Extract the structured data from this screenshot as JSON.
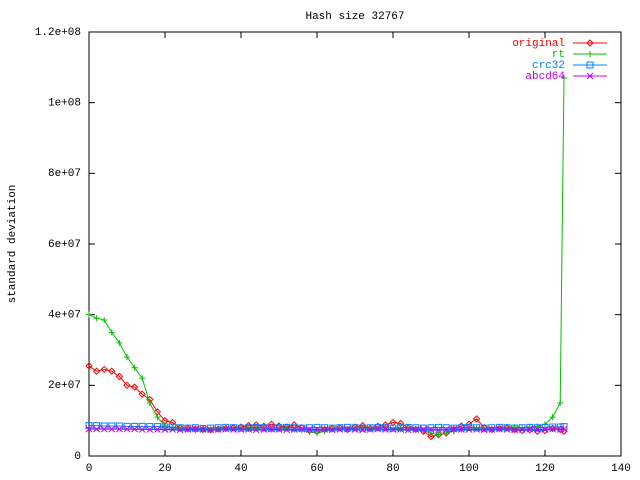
{
  "chart_data": {
    "type": "line",
    "title": "Hash size 32767",
    "y_label": "standard deviation",
    "x": [
      0,
      2,
      4,
      6,
      8,
      10,
      12,
      14,
      16,
      18,
      20,
      22,
      24,
      26,
      28,
      30,
      32,
      34,
      36,
      38,
      40,
      42,
      44,
      46,
      48,
      50,
      52,
      54,
      56,
      58,
      60,
      62,
      64,
      66,
      68,
      70,
      72,
      74,
      76,
      78,
      80,
      82,
      84,
      86,
      88,
      90,
      92,
      94,
      96,
      98,
      100,
      102,
      104,
      106,
      108,
      110,
      112,
      114,
      116,
      118,
      120,
      122,
      124,
      125
    ],
    "series": [
      {
        "name": "original",
        "color": "#ff0000",
        "marker": "diamond",
        "values": [
          25500000.0,
          24000000.0,
          24500000.0,
          24000000.0,
          22500000.0,
          20000000.0,
          19500000.0,
          17500000.0,
          16000000.0,
          12500000.0,
          10000000.0,
          9500000.0,
          8000000.0,
          7800000.0,
          7600000.0,
          7500000.0,
          7400000.0,
          7600000.0,
          7800000.0,
          8000000.0,
          8200000.0,
          8600000.0,
          8800000.0,
          8400000.0,
          9000000.0,
          8500000.0,
          8200000.0,
          8800000.0,
          8000000.0,
          7200000.0,
          7000000.0,
          7500000.0,
          7800000.0,
          8000000.0,
          7500000.0,
          8200000.0,
          8600000.0,
          7800000.0,
          8400000.0,
          8800000.0,
          9500000.0,
          9200000.0,
          8000000.0,
          7500000.0,
          7000000.0,
          5500000.0,
          6000000.0,
          6500000.0,
          7500000.0,
          8500000.0,
          9000000.0,
          10500000.0,
          8000000.0,
          7500000.0,
          7800000.0,
          8000000.0,
          7500000.0,
          7200000.0,
          7400000.0,
          7000000.0,
          7200000.0,
          7800000.0,
          7500000.0,
          7000000.0
        ]
      },
      {
        "name": "rt",
        "color": "#00c000",
        "marker": "plus",
        "values": [
          40000000.0,
          39000000.0,
          38500000.0,
          35000000.0,
          32000000.0,
          28000000.0,
          25000000.0,
          22000000.0,
          15000000.0,
          11000000.0,
          8500000.0,
          8000000.0,
          7600000.0,
          7500000.0,
          7400000.0,
          7300000.0,
          7500000.0,
          7600000.0,
          7800000.0,
          8000000.0,
          7800000.0,
          7600000.0,
          7800000.0,
          8000000.0,
          7500000.0,
          7600000.0,
          7800000.0,
          7400000.0,
          7200000.0,
          6800000.0,
          6500000.0,
          7000000.0,
          7500000.0,
          7800000.0,
          7600000.0,
          7800000.0,
          8000000.0,
          7600000.0,
          7800000.0,
          8000000.0,
          7800000.0,
          7600000.0,
          7500000.0,
          7400000.0,
          7200000.0,
          6500000.0,
          6000000.0,
          6500000.0,
          7000000.0,
          7500000.0,
          8000000.0,
          7800000.0,
          7500000.0,
          7600000.0,
          7800000.0,
          8000000.0,
          8200000.0,
          8000000.0,
          8200000.0,
          8400000.0,
          9000000.0,
          11000000.0,
          15000000.0,
          107000000.0
        ]
      },
      {
        "name": "crc32",
        "color": "#0080ff",
        "marker": "square",
        "values": [
          8600000.0,
          8600000.0,
          8500000.0,
          8500000.0,
          8500000.0,
          8400000.0,
          8400000.0,
          8400000.0,
          8300000.0,
          8300000.0,
          8200000.0,
          8200000.0,
          8000000.0,
          7900000.0,
          8000000.0,
          7800000.0,
          7900000.0,
          8000000.0,
          8100000.0,
          8000000.0,
          7900000.0,
          8000000.0,
          8100000.0,
          8000000.0,
          7900000.0,
          8000000.0,
          8100000.0,
          8000000.0,
          7900000.0,
          8000000.0,
          8100000.0,
          8000000.0,
          7900000.0,
          8000000.0,
          8100000.0,
          8000000.0,
          7900000.0,
          8000000.0,
          8100000.0,
          8000000.0,
          7900000.0,
          8000000.0,
          8100000.0,
          8000000.0,
          7900000.0,
          8000000.0,
          8100000.0,
          8000000.0,
          7900000.0,
          8000000.0,
          8100000.0,
          8000000.0,
          7900000.0,
          8000000.0,
          8100000.0,
          8000000.0,
          7900000.0,
          8000000.0,
          8100000.0,
          8000000.0,
          8100000.0,
          8200000.0,
          8200000.0,
          8300000.0
        ]
      },
      {
        "name": "abcd64",
        "color": "#c000ff",
        "marker": "cross",
        "values": [
          7600000.0,
          7600000.0,
          7600000.0,
          7600000.0,
          7600000.0,
          7600000.0,
          7600000.0,
          7500000.0,
          7500000.0,
          7500000.0,
          7500000.0,
          7500000.0,
          7400000.0,
          7500000.0,
          7600000.0,
          7500000.0,
          7400000.0,
          7500000.0,
          7600000.0,
          7500000.0,
          7500000.0,
          7500000.0,
          7400000.0,
          7500000.0,
          7600000.0,
          7500000.0,
          7400000.0,
          7500000.0,
          7600000.0,
          7500000.0,
          7500000.0,
          7500000.0,
          7400000.0,
          7500000.0,
          7600000.0,
          7500000.0,
          7400000.0,
          7500000.0,
          7600000.0,
          7500000.0,
          7500000.0,
          7500000.0,
          7400000.0,
          7500000.0,
          7600000.0,
          7500000.0,
          7400000.0,
          7500000.0,
          7600000.0,
          7500000.0,
          7500000.0,
          7500000.0,
          7400000.0,
          7500000.0,
          7600000.0,
          7500000.0,
          7400000.0,
          7500000.0,
          7600000.0,
          7500000.0,
          7500000.0,
          7600000.0,
          7500000.0,
          7600000.0
        ]
      }
    ],
    "xlim": [
      0,
      140
    ],
    "xticks": [
      0,
      20,
      40,
      60,
      80,
      100,
      120,
      140
    ],
    "ylim": [
      0,
      120000000.0
    ],
    "yticks": [
      0,
      {
        "value": 20000000.0,
        "label": "2e+07"
      },
      {
        "value": 40000000.0,
        "label": "4e+07"
      },
      {
        "value": 60000000.0,
        "label": "6e+07"
      },
      {
        "value": 80000000.0,
        "label": "8e+07"
      },
      {
        "value": 100000000.0,
        "label": "1e+08"
      },
      {
        "value": 120000000.0,
        "label": "1.2e+08"
      }
    ],
    "legend": "top-right",
    "grid": false
  }
}
